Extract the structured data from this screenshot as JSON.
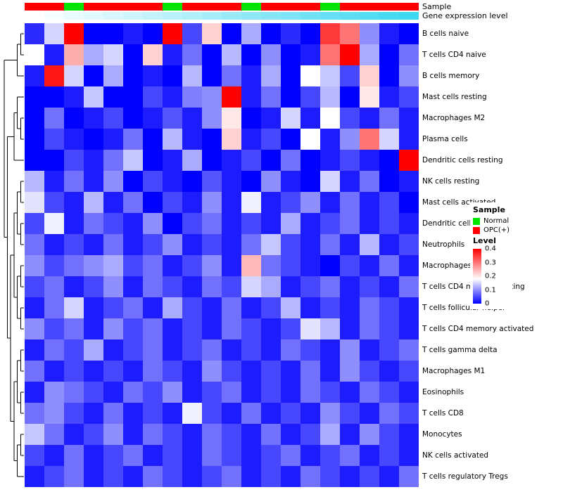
{
  "annotations": {
    "sample_label": "Sample",
    "gene_label": "Gene expression level"
  },
  "annotation_colors": {
    "Normal": "#00E400",
    "OPC(+)": "#FF0000"
  },
  "gene_scale": {
    "low": "#FFFFFF",
    "high": "#3FD8F2"
  },
  "legend": {
    "sample_title": "Sample",
    "items": [
      {
        "label": "Normal",
        "color": "#00E400"
      },
      {
        "label": "OPC(+)",
        "color": "#FF0000"
      }
    ],
    "level_title": "Level",
    "level_ticks": [
      "0.4",
      "0.3",
      "0.2",
      "0.1",
      "0"
    ]
  },
  "chart_data": {
    "type": "heatmap",
    "title": "",
    "xlabel": "",
    "ylabel": "",
    "n_cols": 20,
    "rows": [
      "B cells naive",
      "T cells CD4 naive",
      "B cells memory",
      "Mast cells resting",
      "Macrophages M2",
      "Plasma cells",
      "Dendritic cells resting",
      "NK cells resting",
      "Mast cells activated",
      "Dendritic cells activated",
      "Neutrophils",
      "Macrophages M0",
      "T cells CD4 memory resting",
      "T cells follicular helper",
      "T cells CD4 memory activated",
      "T cells gamma delta",
      "Macrophages M1",
      "Eosinophils",
      "T cells CD8",
      "Monocytes",
      "NK cells activated",
      "T cells regulatory Tregs"
    ],
    "values": [
      [
        0.03,
        0.15,
        0.4,
        0.0,
        0.0,
        0.02,
        0.0,
        0.4,
        0.05,
        0.22,
        0.0,
        0.12,
        0.0,
        0.03,
        0.0,
        0.35,
        0.3,
        0.1,
        0.02,
        0.0
      ],
      [
        0.18,
        0.02,
        0.25,
        0.12,
        0.15,
        0.0,
        0.22,
        0.02,
        0.08,
        0.0,
        0.13,
        0.0,
        0.1,
        0.0,
        0.02,
        0.3,
        0.4,
        0.12,
        0.0,
        0.08
      ],
      [
        0.02,
        0.38,
        0.15,
        0.0,
        0.12,
        0.0,
        0.02,
        0.0,
        0.13,
        0.0,
        0.08,
        0.02,
        0.12,
        0.0,
        0.18,
        0.14,
        0.05,
        0.22,
        0.0,
        0.1
      ],
      [
        0.0,
        0.0,
        0.02,
        0.14,
        0.0,
        0.0,
        0.05,
        0.02,
        0.09,
        0.1,
        0.42,
        0.02,
        0.08,
        0.0,
        0.05,
        0.13,
        0.0,
        0.2,
        0.02,
        0.05
      ],
      [
        0.0,
        0.08,
        0.0,
        0.02,
        0.05,
        0.0,
        0.02,
        0.06,
        0.02,
        0.1,
        0.2,
        0.0,
        0.02,
        0.15,
        0.02,
        0.18,
        0.05,
        0.02,
        0.08,
        0.02
      ],
      [
        0.0,
        0.05,
        0.02,
        0.0,
        0.02,
        0.08,
        0.0,
        0.13,
        0.02,
        0.0,
        0.22,
        0.02,
        0.05,
        0.0,
        0.18,
        0.02,
        0.1,
        0.3,
        0.15,
        0.02
      ],
      [
        0.0,
        0.0,
        0.05,
        0.02,
        0.08,
        0.14,
        0.0,
        0.02,
        0.12,
        0.0,
        0.02,
        0.05,
        0.0,
        0.08,
        0.0,
        0.02,
        0.05,
        0.02,
        0.0,
        0.42
      ],
      [
        0.13,
        0.02,
        0.08,
        0.02,
        0.1,
        0.0,
        0.05,
        0.02,
        0.0,
        0.06,
        0.02,
        0.0,
        0.1,
        0.02,
        0.0,
        0.15,
        0.02,
        0.08,
        0.0,
        0.02
      ],
      [
        0.16,
        0.05,
        0.02,
        0.13,
        0.02,
        0.08,
        0.0,
        0.05,
        0.02,
        0.1,
        0.02,
        0.17,
        0.02,
        0.05,
        0.1,
        0.02,
        0.08,
        0.02,
        0.05,
        0.0
      ],
      [
        0.05,
        0.17,
        0.02,
        0.08,
        0.05,
        0.02,
        0.1,
        0.0,
        0.05,
        0.08,
        0.02,
        0.05,
        0.02,
        0.12,
        0.02,
        0.05,
        0.08,
        0.02,
        0.05,
        0.02
      ],
      [
        0.08,
        0.02,
        0.05,
        0.02,
        0.08,
        0.02,
        0.05,
        0.1,
        0.02,
        0.05,
        0.02,
        0.08,
        0.14,
        0.05,
        0.02,
        0.08,
        0.02,
        0.13,
        0.02,
        0.05
      ],
      [
        0.1,
        0.05,
        0.08,
        0.1,
        0.12,
        0.05,
        0.08,
        0.02,
        0.05,
        0.1,
        0.02,
        0.24,
        0.08,
        0.05,
        0.02,
        0.0,
        0.05,
        0.02,
        0.08,
        0.02
      ],
      [
        0.05,
        0.08,
        0.02,
        0.05,
        0.1,
        0.02,
        0.08,
        0.05,
        0.02,
        0.08,
        0.05,
        0.15,
        0.12,
        0.02,
        0.05,
        0.08,
        0.02,
        0.05,
        0.02,
        0.08
      ],
      [
        0.02,
        0.08,
        0.15,
        0.02,
        0.05,
        0.08,
        0.02,
        0.12,
        0.05,
        0.02,
        0.08,
        0.02,
        0.05,
        0.13,
        0.02,
        0.05,
        0.02,
        0.08,
        0.05,
        0.02
      ],
      [
        0.1,
        0.05,
        0.08,
        0.02,
        0.1,
        0.05,
        0.08,
        0.02,
        0.05,
        0.02,
        0.08,
        0.05,
        0.02,
        0.05,
        0.16,
        0.13,
        0.02,
        0.08,
        0.05,
        0.02
      ],
      [
        0.02,
        0.08,
        0.05,
        0.12,
        0.02,
        0.05,
        0.08,
        0.02,
        0.05,
        0.08,
        0.02,
        0.05,
        0.02,
        0.08,
        0.05,
        0.02,
        0.1,
        0.02,
        0.05,
        0.08
      ],
      [
        0.08,
        0.02,
        0.05,
        0.02,
        0.05,
        0.02,
        0.08,
        0.05,
        0.02,
        0.1,
        0.05,
        0.02,
        0.05,
        0.02,
        0.08,
        0.02,
        0.1,
        0.05,
        0.02,
        0.05
      ],
      [
        0.02,
        0.1,
        0.08,
        0.05,
        0.02,
        0.08,
        0.05,
        0.1,
        0.02,
        0.05,
        0.08,
        0.02,
        0.05,
        0.02,
        0.08,
        0.05,
        0.02,
        0.08,
        0.05,
        0.02
      ],
      [
        0.08,
        0.1,
        0.05,
        0.02,
        0.08,
        0.02,
        0.05,
        0.02,
        0.17,
        0.05,
        0.02,
        0.08,
        0.02,
        0.05,
        0.02,
        0.1,
        0.05,
        0.02,
        0.08,
        0.05
      ],
      [
        0.14,
        0.08,
        0.02,
        0.05,
        0.1,
        0.02,
        0.08,
        0.05,
        0.02,
        0.08,
        0.05,
        0.02,
        0.08,
        0.02,
        0.05,
        0.12,
        0.02,
        0.1,
        0.05,
        0.02
      ],
      [
        0.05,
        0.02,
        0.08,
        0.02,
        0.05,
        0.08,
        0.02,
        0.05,
        0.02,
        0.08,
        0.05,
        0.02,
        0.05,
        0.08,
        0.02,
        0.05,
        0.08,
        0.02,
        0.05,
        0.02
      ],
      [
        0.02,
        0.05,
        0.08,
        0.02,
        0.05,
        0.02,
        0.08,
        0.05,
        0.02,
        0.05,
        0.08,
        0.02,
        0.05,
        0.02,
        0.08,
        0.05,
        0.02,
        0.05,
        0.02,
        0.08
      ]
    ],
    "color_scale": {
      "min": 0,
      "mid": 0.18,
      "max": 0.4,
      "low": "#0000FE",
      "mid_color": "#FFFFFF",
      "high": "#FF0000"
    },
    "column_annotations": {
      "sample": [
        "OPC(+)",
        "OPC(+)",
        "Normal",
        "OPC(+)",
        "OPC(+)",
        "OPC(+)",
        "OPC(+)",
        "Normal",
        "OPC(+)",
        "OPC(+)",
        "OPC(+)",
        "Normal",
        "OPC(+)",
        "OPC(+)",
        "OPC(+)",
        "Normal",
        "OPC(+)",
        "OPC(+)",
        "OPC(+)",
        "OPC(+)"
      ],
      "gene_expression_level": [
        0,
        0.05,
        0.11,
        0.16,
        0.21,
        0.26,
        0.32,
        0.37,
        0.42,
        0.47,
        0.53,
        0.58,
        0.63,
        0.68,
        0.74,
        0.79,
        0.84,
        0.89,
        0.95,
        1
      ]
    },
    "dendrogram": [
      [
        [
          0,
          1
        ],
        2
      ],
      [
        [
          [
            3,
            [
              4,
              5
            ]
          ],
          6
        ],
        [
          [
            [
              [
                7,
                8
              ],
              [
                9,
                10
              ]
            ],
            [
              [
                11,
                12
              ],
              [
                13,
                14
              ]
            ]
          ],
          [
            [
              [
                15,
                16
              ],
              [
                17,
                18
              ]
            ],
            [
              [
                19,
                20
              ],
              21
            ]
          ]
        ]
      ]
    ],
    "axis": {
      "ylim": [
        0,
        0.4
      ],
      "grid": false,
      "legend_position": "right"
    }
  }
}
